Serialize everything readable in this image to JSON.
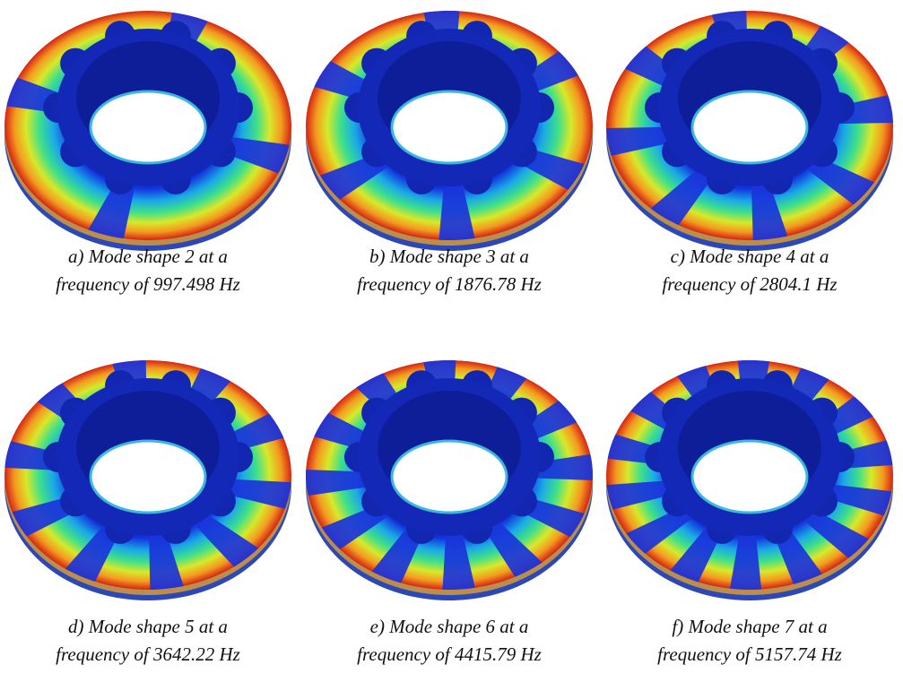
{
  "panels": [
    {
      "caption": [
        "a) Mode shape 2 at a",
        "frequency of 997.498 Hz"
      ]
    },
    {
      "caption": [
        "b) Mode shape 3 at a",
        "frequency of 1876.78 Hz"
      ]
    },
    {
      "caption": [
        "c) Mode shape 4 at a",
        "frequency of 2804.1 Hz"
      ]
    },
    {
      "caption": [
        "d) Mode shape 5 at a",
        "frequency of 3642.22 Hz"
      ]
    },
    {
      "caption": [
        "e) Mode shape 6 at a",
        "frequency of 4415.79 Hz"
      ]
    },
    {
      "caption": [
        "f) Mode shape 7 at a",
        "frequency of 5157.74 Hz"
      ]
    }
  ]
}
